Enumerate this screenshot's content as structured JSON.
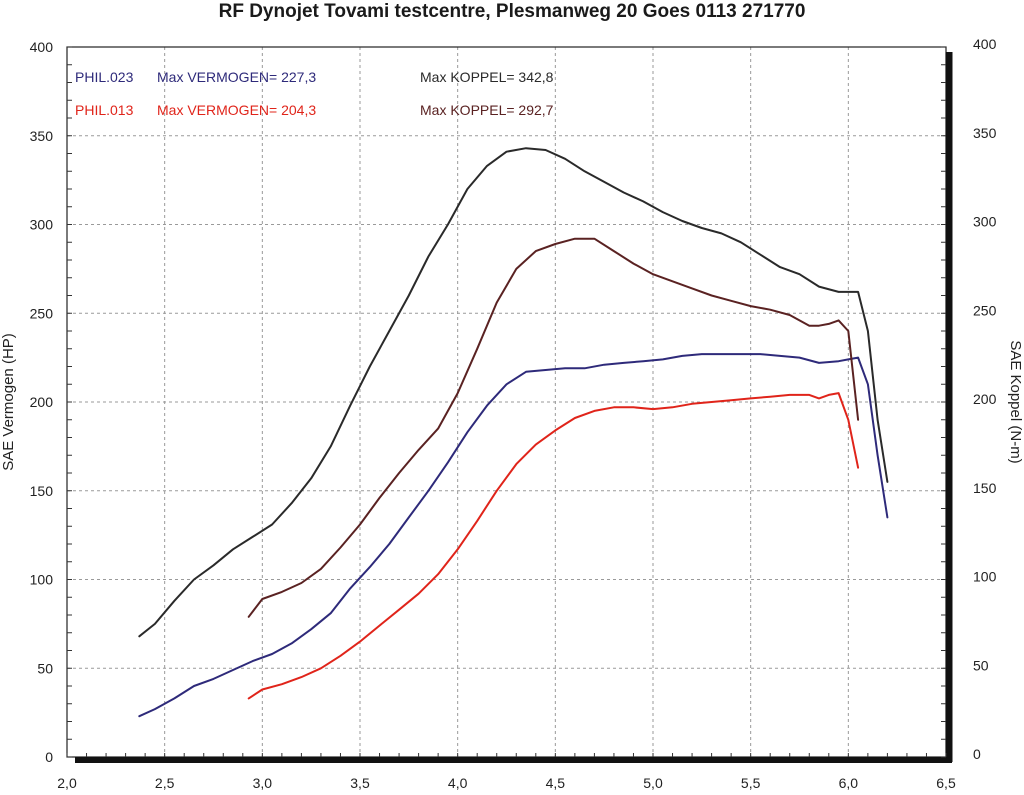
{
  "chart_data": {
    "type": "line",
    "title": "RF Dynojet Tovami testcentre, Plesmanweg 20 Goes 0113 271770",
    "xlabel": "",
    "ylabel": "SAE Vermogen (HP)",
    "y2label": "SAE Koppel (N-m)",
    "xlim": [
      2.0,
      6.5
    ],
    "ylim": [
      0,
      400
    ],
    "y2lim": [
      0,
      400
    ],
    "x_ticks": [
      "2,0",
      "2,5",
      "3,0",
      "3,5",
      "4,0",
      "4,5",
      "5,0",
      "5,5",
      "6,0",
      "6,5"
    ],
    "y_ticks": [
      "0",
      "50",
      "100",
      "150",
      "200",
      "250",
      "300",
      "350",
      "400"
    ],
    "y2_ticks": [
      "0",
      "50",
      "100",
      "150",
      "200",
      "250",
      "300",
      "350",
      "400"
    ],
    "grid": true,
    "legend": [
      {
        "run": "PHIL.023",
        "text": "Max VERMOGEN= 227,3",
        "torque_text": "Max KOPPEL= 342,8",
        "color": "#2e2a7a",
        "torque_color": "#2a2a2a"
      },
      {
        "run": "PHIL.013",
        "text": "Max VERMOGEN= 204,3",
        "torque_text": "Max KOPPEL= 292,7",
        "color": "#e0241a",
        "torque_color": "#5a2222"
      }
    ],
    "series": [
      {
        "key": "phil023_power",
        "axis": "left",
        "color": "#2e2a7a",
        "x": [
          2.37,
          2.45,
          2.55,
          2.65,
          2.75,
          2.85,
          2.95,
          3.05,
          3.15,
          3.25,
          3.35,
          3.45,
          3.55,
          3.65,
          3.75,
          3.85,
          3.95,
          4.05,
          4.15,
          4.25,
          4.35,
          4.45,
          4.55,
          4.65,
          4.75,
          4.85,
          4.95,
          5.05,
          5.15,
          5.25,
          5.35,
          5.45,
          5.55,
          5.65,
          5.75,
          5.85,
          5.95,
          6.0,
          6.05,
          6.1,
          6.15,
          6.2
        ],
        "y": [
          23,
          27,
          33,
          40,
          44,
          49,
          54,
          58,
          64,
          72,
          81,
          95,
          107,
          120,
          135,
          150,
          166,
          183,
          198,
          210,
          217,
          218,
          219,
          219,
          221,
          222,
          223,
          224,
          226,
          227,
          227,
          227,
          227,
          226,
          225,
          222,
          223,
          224,
          225,
          210,
          170,
          135
        ]
      },
      {
        "key": "phil023_torque",
        "axis": "right",
        "color": "#2a2a2a",
        "x": [
          2.37,
          2.45,
          2.55,
          2.65,
          2.75,
          2.85,
          2.95,
          3.05,
          3.15,
          3.25,
          3.35,
          3.45,
          3.55,
          3.65,
          3.75,
          3.85,
          3.95,
          4.05,
          4.15,
          4.25,
          4.35,
          4.45,
          4.55,
          4.65,
          4.75,
          4.85,
          4.95,
          5.05,
          5.15,
          5.25,
          5.35,
          5.45,
          5.55,
          5.65,
          5.75,
          5.85,
          5.95,
          6.0,
          6.05,
          6.1,
          6.15,
          6.2
        ],
        "y": [
          68,
          75,
          88,
          100,
          108,
          117,
          124,
          131,
          143,
          157,
          175,
          198,
          220,
          240,
          260,
          282,
          300,
          320,
          333,
          341,
          343,
          342,
          337,
          330,
          324,
          318,
          313,
          307,
          302,
          298,
          295,
          290,
          283,
          276,
          272,
          265,
          262,
          262,
          262,
          240,
          190,
          155
        ]
      },
      {
        "key": "phil013_power",
        "axis": "left",
        "color": "#e0241a",
        "x": [
          2.93,
          3.0,
          3.1,
          3.2,
          3.3,
          3.4,
          3.5,
          3.6,
          3.7,
          3.8,
          3.9,
          4.0,
          4.1,
          4.2,
          4.3,
          4.4,
          4.5,
          4.6,
          4.7,
          4.8,
          4.9,
          5.0,
          5.1,
          5.2,
          5.3,
          5.4,
          5.5,
          5.6,
          5.7,
          5.8,
          5.85,
          5.9,
          5.95,
          6.0,
          6.05
        ],
        "y": [
          33,
          38,
          41,
          45,
          50,
          57,
          65,
          74,
          83,
          92,
          103,
          117,
          133,
          150,
          165,
          176,
          184,
          191,
          195,
          197,
          197,
          196,
          197,
          199,
          200,
          201,
          202,
          203,
          204,
          204,
          202,
          204,
          205,
          190,
          163
        ]
      },
      {
        "key": "phil013_torque",
        "axis": "right",
        "color": "#5a2222",
        "x": [
          2.93,
          3.0,
          3.1,
          3.2,
          3.3,
          3.4,
          3.5,
          3.6,
          3.7,
          3.8,
          3.9,
          4.0,
          4.1,
          4.2,
          4.3,
          4.4,
          4.5,
          4.6,
          4.7,
          4.8,
          4.9,
          5.0,
          5.1,
          5.2,
          5.3,
          5.4,
          5.5,
          5.6,
          5.7,
          5.8,
          5.85,
          5.9,
          5.95,
          6.0,
          6.05
        ],
        "y": [
          79,
          89,
          93,
          98,
          106,
          118,
          131,
          146,
          160,
          173,
          185,
          205,
          230,
          256,
          275,
          285,
          289,
          292,
          292,
          285,
          278,
          272,
          268,
          264,
          260,
          257,
          254,
          252,
          249,
          243,
          243,
          244,
          246,
          240,
          190
        ]
      }
    ]
  }
}
